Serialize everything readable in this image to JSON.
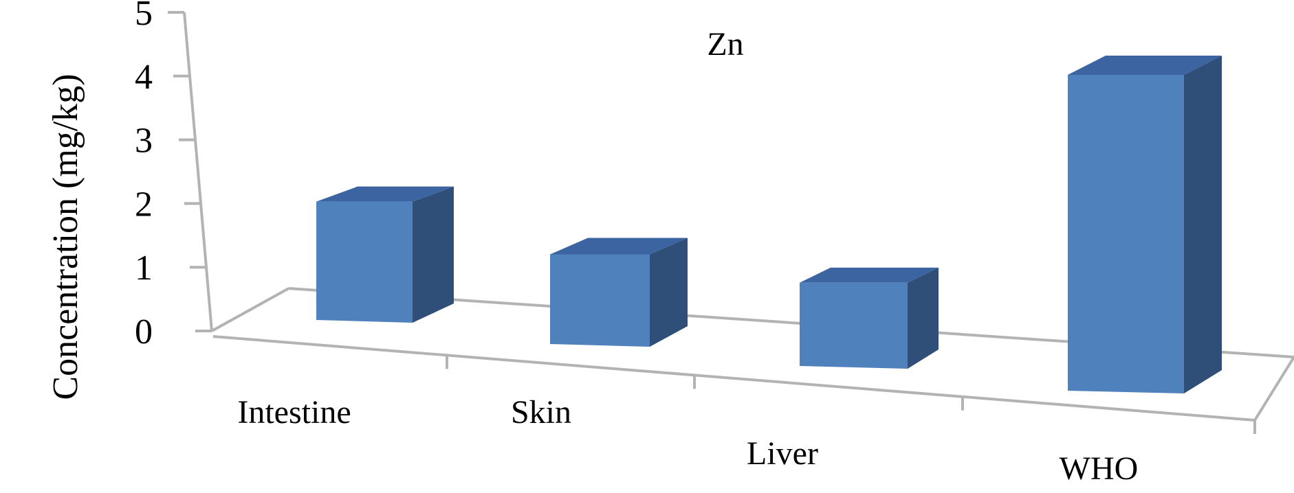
{
  "chart_data": {
    "type": "bar",
    "title": "Zn",
    "xlabel": "",
    "ylabel": "Concentration (mg/kg)",
    "categories": [
      "Intestine",
      "Skin",
      "Liver",
      "WHO"
    ],
    "values": [
      1.9,
      1.45,
      1.35,
      5.0
    ],
    "ylim": [
      0,
      5
    ],
    "yticks": [
      "0",
      "1",
      "2",
      "3",
      "4",
      "5"
    ],
    "grid": false,
    "legend": "none",
    "projection": "3d",
    "colors": {
      "front": "#4f81bd",
      "side": "#2f4e78",
      "top": "#3b64a0",
      "axis": "#b3b3b3"
    }
  }
}
